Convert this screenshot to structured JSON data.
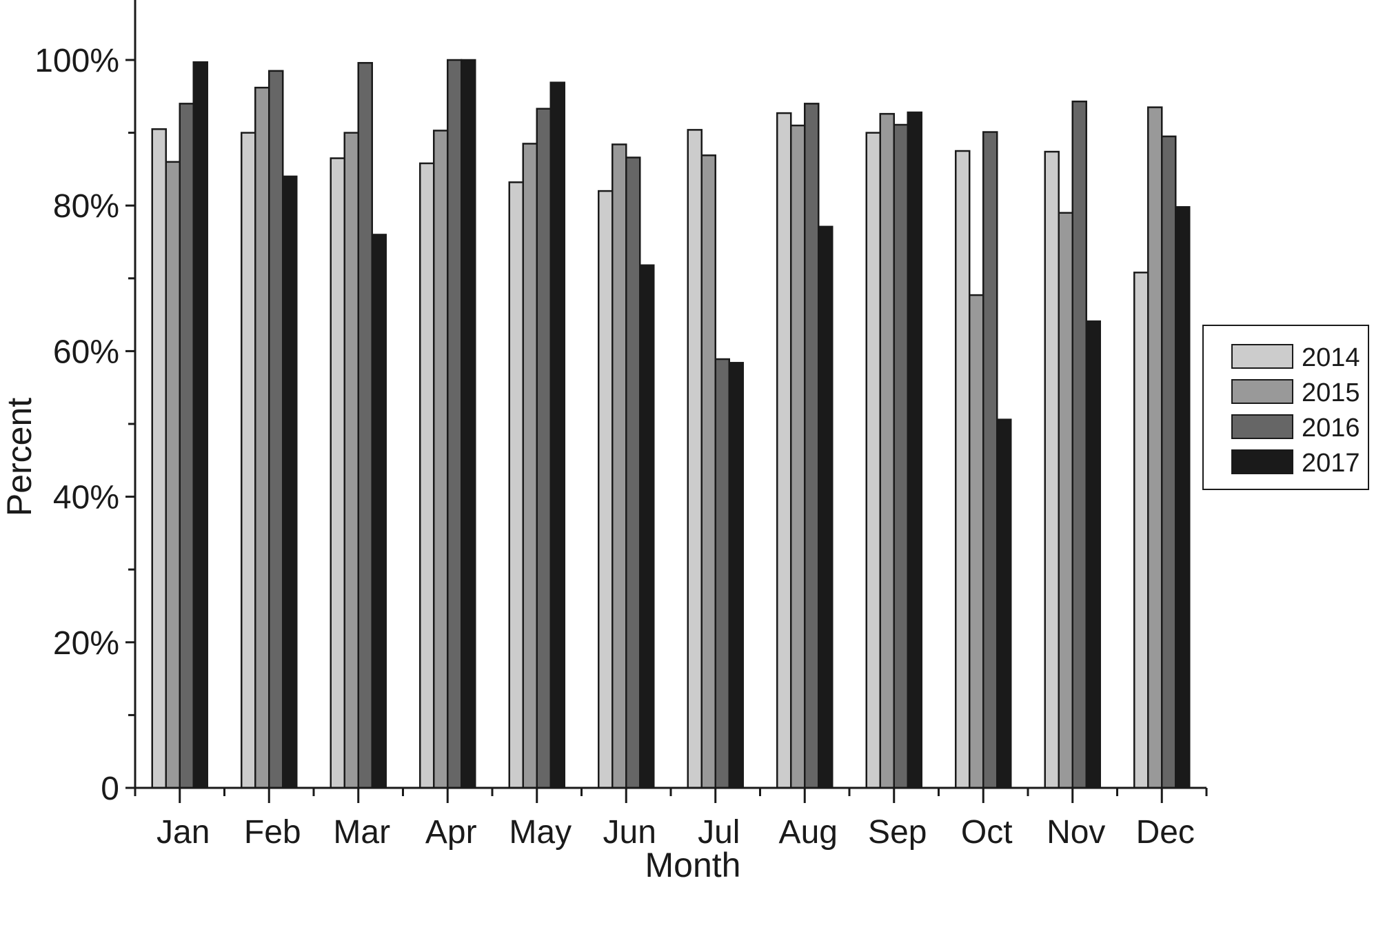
{
  "chart_data": {
    "type": "bar",
    "title": "",
    "xlabel": "Month",
    "ylabel": "Percent",
    "categories": [
      "Jan",
      "Feb",
      "Mar",
      "Apr",
      "May",
      "Jun",
      "Jul",
      "Aug",
      "Sep",
      "Oct",
      "Nov",
      "Dec"
    ],
    "ylim": [
      0,
      100
    ],
    "yticks": [
      0,
      20,
      40,
      60,
      80,
      100
    ],
    "ytick_labels": [
      "0",
      "20%",
      "40%",
      "60%",
      "80%",
      "100%"
    ],
    "grid": false,
    "legend_position": "right",
    "series": [
      {
        "name": "2014",
        "color": "#cccccc",
        "values": [
          90.5,
          90,
          86.5,
          85.8,
          83.2,
          82,
          90.4,
          92.7,
          90,
          87.5,
          87.4,
          70.8
        ]
      },
      {
        "name": "2015",
        "color": "#999999",
        "values": [
          86,
          96.2,
          90,
          90.3,
          88.5,
          88.4,
          86.9,
          91,
          92.6,
          67.7,
          79,
          93.5
        ]
      },
      {
        "name": "2016",
        "color": "#666666",
        "values": [
          94,
          98.5,
          99.6,
          100,
          93.3,
          86.6,
          58.9,
          94,
          91.1,
          90.1,
          94.3,
          89.5
        ]
      },
      {
        "name": "2017",
        "color": "#1a1a1a",
        "values": [
          99.7,
          84,
          76,
          100,
          96.9,
          71.8,
          58.4,
          77.1,
          92.8,
          50.6,
          64.1,
          79.8
        ]
      }
    ]
  }
}
